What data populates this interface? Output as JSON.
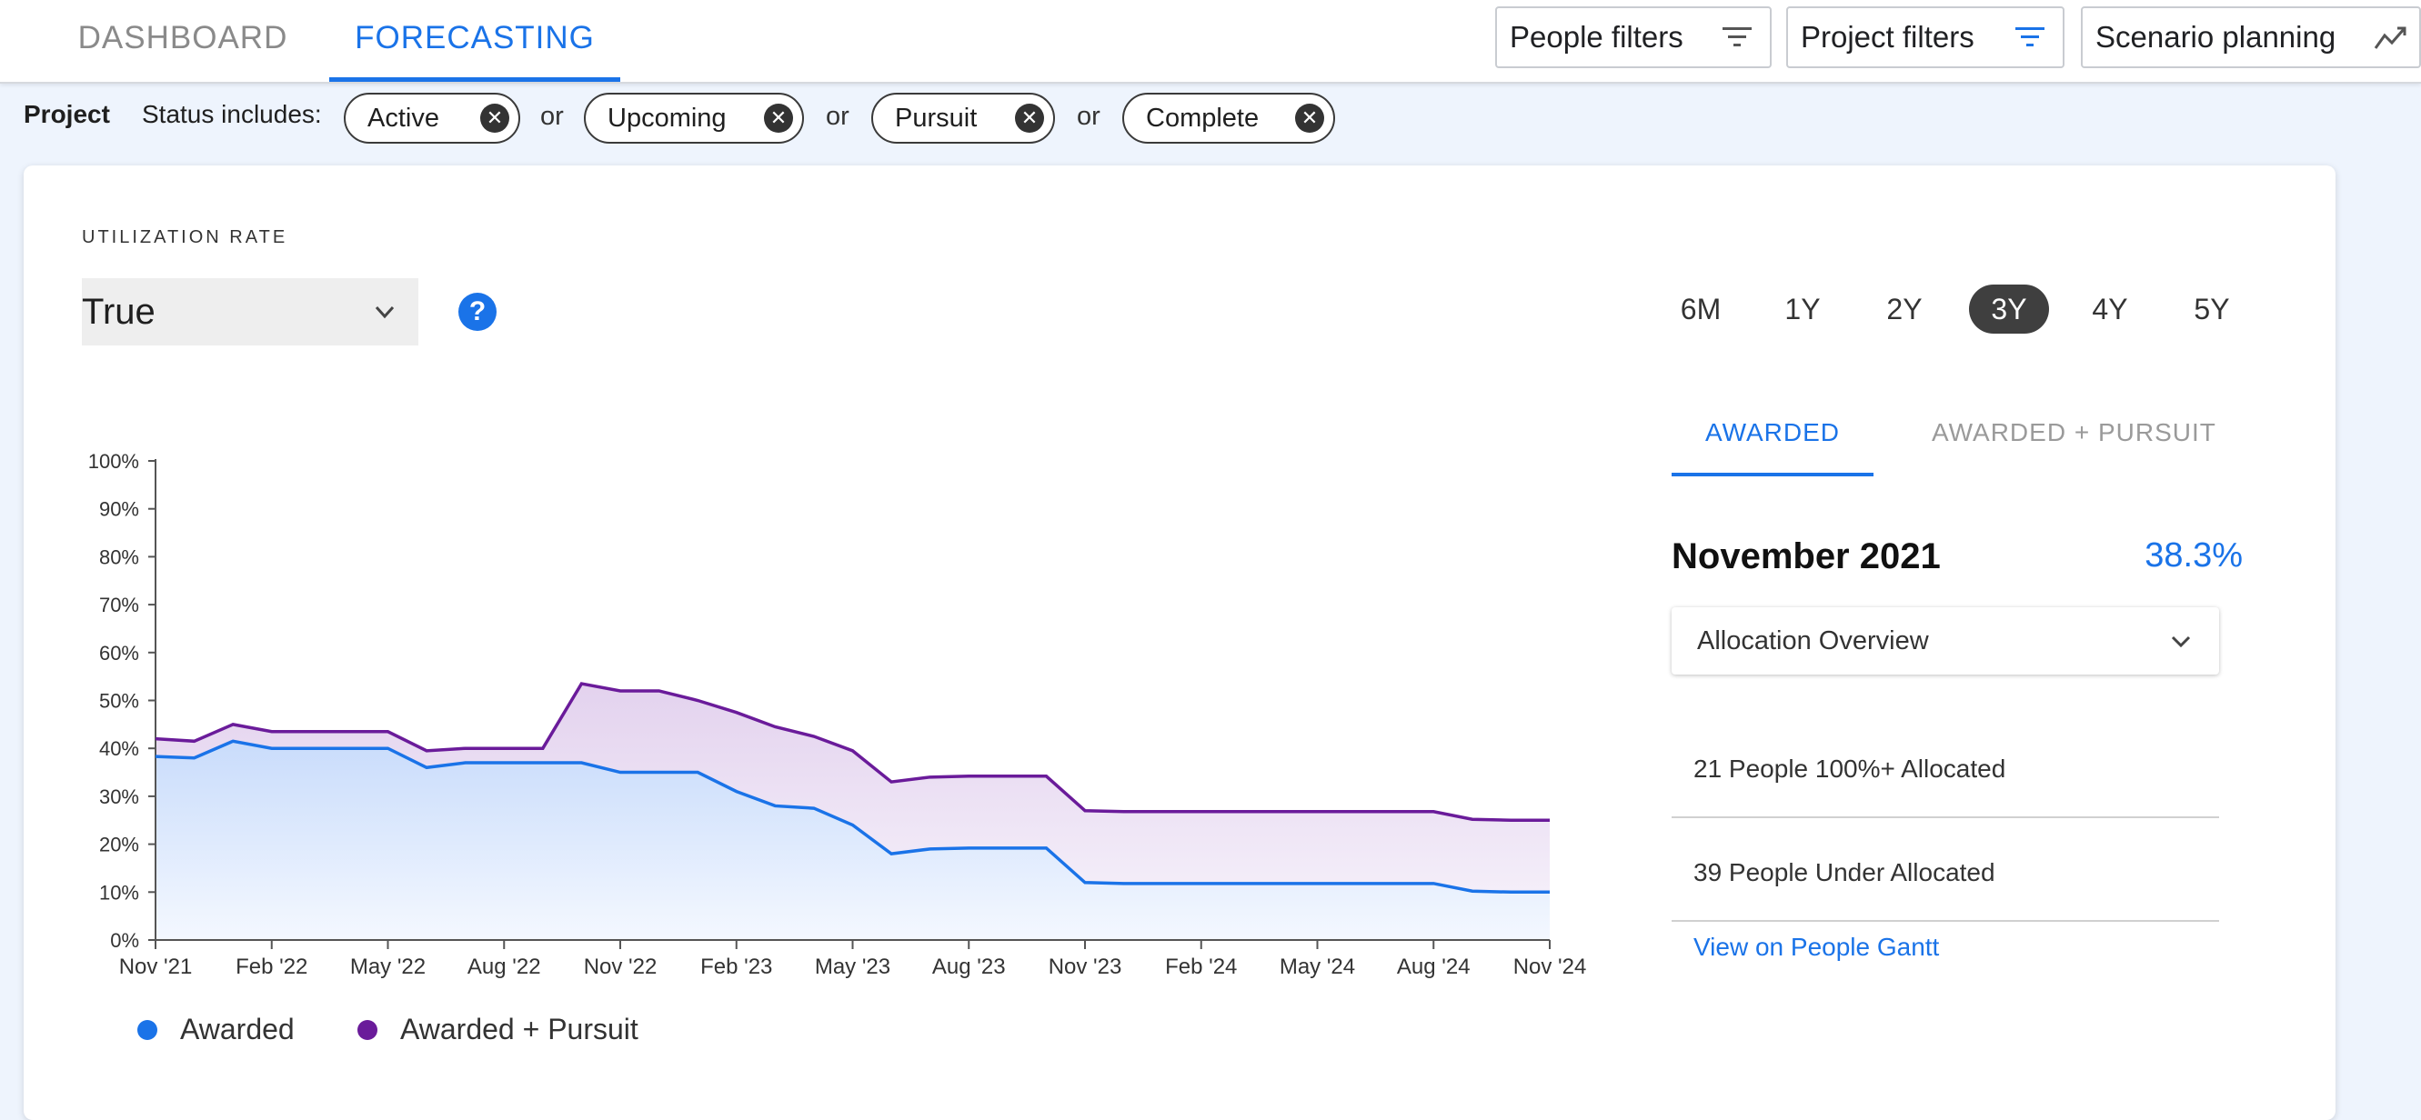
{
  "nav": {
    "tabs": [
      {
        "label": "DASHBOARD",
        "active": false
      },
      {
        "label": "FORECASTING",
        "active": true
      }
    ],
    "filters": [
      {
        "label": "People filters",
        "icon": "filter-icon"
      },
      {
        "label": "Project filters",
        "icon": "filter-icon",
        "accent": "#1a73e8"
      },
      {
        "label": "Scenario planning",
        "icon": "trend-icon"
      }
    ]
  },
  "status_filter": {
    "group_label": "Project",
    "label": "Status includes:",
    "joiner": "or",
    "chips": [
      "Active",
      "Upcoming",
      "Pursuit",
      "Complete"
    ]
  },
  "card": {
    "section_label": "UTILIZATION RATE",
    "select_value": "True",
    "help_icon": "?",
    "ranges": [
      "6M",
      "1Y",
      "2Y",
      "3Y",
      "4Y",
      "5Y"
    ],
    "active_range": "3Y"
  },
  "summary": {
    "tabs": [
      "AWARDED",
      "AWARDED + PURSUIT"
    ],
    "active_tab": "AWARDED",
    "month": "November 2021",
    "rate": "38.3%",
    "allocation_label": "Allocation Overview",
    "rows": [
      "21 People 100%+ Allocated",
      "39 People Under Allocated"
    ],
    "link": "View on People Gantt"
  },
  "colors": {
    "awarded": "#1a73e8",
    "awarded_pursuit": "#6a1b9a"
  },
  "chart_data": {
    "type": "area",
    "x": [
      "Nov '21",
      "Dec '21",
      "Jan '22",
      "Feb '22",
      "Mar '22",
      "Apr '22",
      "May '22",
      "Jun '22",
      "Jul '22",
      "Aug '22",
      "Sep '22",
      "Oct '22",
      "Nov '22",
      "Dec '22",
      "Jan '23",
      "Feb '23",
      "Mar '23",
      "Apr '23",
      "May '23",
      "Jun '23",
      "Jul '23",
      "Aug '23",
      "Sep '23",
      "Oct '23",
      "Nov '23",
      "Dec '23",
      "Jan '24",
      "Feb '24",
      "Mar '24",
      "Apr '24",
      "May '24",
      "Jun '24",
      "Jul '24",
      "Aug '24",
      "Sep '24",
      "Oct '24",
      "Nov '24"
    ],
    "x_tick_labels": [
      "Nov '21",
      "Feb '22",
      "May '22",
      "Aug '22",
      "Nov '22",
      "Feb '23",
      "May '23",
      "Aug '23",
      "Nov '23",
      "Feb '24",
      "May '24",
      "Aug '24",
      "Nov '24"
    ],
    "y_tick_labels": [
      "0%",
      "10%",
      "20%",
      "30%",
      "40%",
      "50%",
      "60%",
      "70%",
      "80%",
      "90%",
      "100%"
    ],
    "ylim": [
      0,
      100
    ],
    "legend_placement": "bottom-left",
    "series": [
      {
        "name": "Awarded",
        "color": "#1a73e8",
        "values": [
          38.3,
          38,
          41.5,
          40,
          40,
          40,
          40,
          36,
          37,
          37,
          37,
          37,
          35,
          35,
          35,
          31,
          28,
          27.5,
          24,
          18,
          19,
          19.2,
          19.2,
          19.2,
          12,
          11.8,
          11.8,
          11.8,
          11.8,
          11.8,
          11.8,
          11.8,
          11.8,
          11.8,
          10.2,
          10,
          10
        ]
      },
      {
        "name": "Awarded + Pursuit",
        "color": "#6a1b9a",
        "values": [
          42,
          41.5,
          45,
          43.5,
          43.5,
          43.5,
          43.5,
          39.5,
          40,
          40,
          40,
          53.5,
          52,
          52,
          50,
          47.5,
          44.5,
          42.5,
          39.5,
          33,
          34,
          34.2,
          34.2,
          34.2,
          27,
          26.8,
          26.8,
          26.8,
          26.8,
          26.8,
          26.8,
          26.8,
          26.8,
          26.8,
          25.2,
          25,
          25
        ]
      }
    ]
  }
}
